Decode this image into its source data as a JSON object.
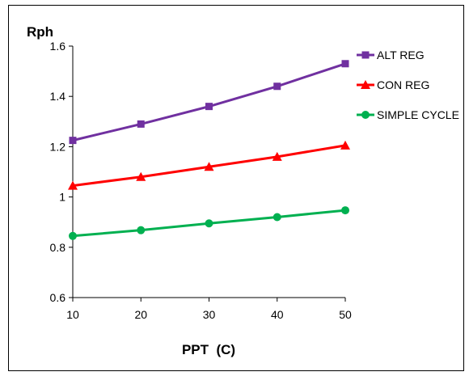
{
  "chart_data": {
    "type": "line",
    "title": "",
    "xlabel": "PPT  (C)",
    "ylabel": "Rph",
    "x": [
      10,
      20,
      30,
      40,
      50
    ],
    "xlim": [
      10,
      50
    ],
    "xticks": [
      "10",
      "20",
      "30",
      "40",
      "50"
    ],
    "ylim": [
      0.6,
      1.6
    ],
    "yticks": [
      "0.6",
      "0.8",
      "1",
      "1.2",
      "1.4",
      "1.6"
    ],
    "grid": false,
    "legend_position": "right",
    "series": [
      {
        "name": "ALT REG",
        "values": [
          1.225,
          1.29,
          1.36,
          1.44,
          1.53
        ],
        "color": "#7030A0",
        "marker": "square"
      },
      {
        "name": "CON REG",
        "values": [
          1.045,
          1.08,
          1.12,
          1.16,
          1.205
        ],
        "color": "#FF0000",
        "marker": "triangle"
      },
      {
        "name": "SIMPLE CYCLE",
        "values": [
          0.845,
          0.868,
          0.895,
          0.92,
          0.947
        ],
        "color": "#00B050",
        "marker": "circle"
      }
    ]
  }
}
